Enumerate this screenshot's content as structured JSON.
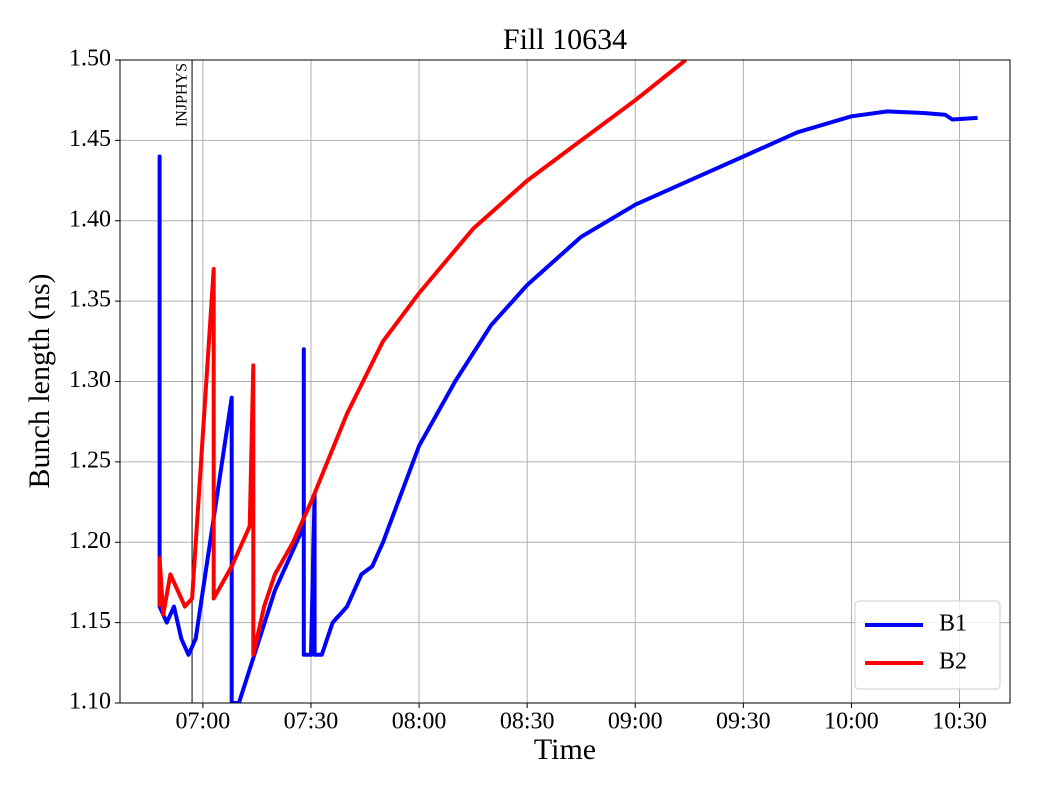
{
  "chart_data": {
    "type": "line",
    "title": "Fill 10634",
    "x_label": "Time",
    "y_label": "Bunch length (ns)",
    "xlim": [
      "06:37",
      "10:44"
    ],
    "xticks": [
      "07:00",
      "07:30",
      "08:00",
      "08:30",
      "09:00",
      "09:30",
      "10:00",
      "10:30"
    ],
    "ylim": [
      1.1,
      1.5
    ],
    "yticks": [
      {
        "value": 1.1,
        "label": "1.10"
      },
      {
        "value": 1.15,
        "label": "1.15"
      },
      {
        "value": 1.2,
        "label": "1.20"
      },
      {
        "value": 1.25,
        "label": "1.25"
      },
      {
        "value": 1.3,
        "label": "1.30"
      },
      {
        "value": 1.35,
        "label": "1.35"
      },
      {
        "value": 1.4,
        "label": "1.40"
      },
      {
        "value": 1.45,
        "label": "1.45"
      },
      {
        "value": 1.5,
        "label": "1.50"
      }
    ],
    "grid": true,
    "legend": "lower right",
    "annotations": [
      {
        "x": "06:57",
        "text": "INJPHYS"
      }
    ],
    "series": [
      {
        "name": "B1",
        "color": "#0000ff",
        "x": [
          "06:48",
          "06:48",
          "06:48",
          "06:50",
          "06:52",
          "06:54",
          "06:56",
          "06:58",
          "07:08",
          "07:08",
          "07:10",
          "07:20",
          "07:28",
          "07:28",
          "07:28",
          "07:30",
          "07:31",
          "07:31",
          "07:33",
          "07:36",
          "07:40",
          "07:44",
          "07:47",
          "07:50",
          "08:00",
          "08:10",
          "08:20",
          "08:30",
          "08:45",
          "09:00",
          "09:15",
          "09:30",
          "09:45",
          "10:00",
          "10:10",
          "10:20",
          "10:26",
          "10:28",
          "10:35"
        ],
        "values": [
          1.16,
          1.44,
          1.16,
          1.15,
          1.16,
          1.14,
          1.13,
          1.14,
          1.29,
          1.1,
          1.1,
          1.17,
          1.21,
          1.32,
          1.13,
          1.13,
          1.23,
          1.13,
          1.13,
          1.15,
          1.16,
          1.18,
          1.185,
          1.2,
          1.26,
          1.3,
          1.335,
          1.36,
          1.39,
          1.41,
          1.425,
          1.44,
          1.455,
          1.465,
          1.468,
          1.467,
          1.466,
          1.463,
          1.464
        ]
      },
      {
        "name": "B2",
        "color": "#ff0000",
        "x": [
          "06:48",
          "06:48",
          "06:49",
          "06:51",
          "06:53",
          "06:55",
          "06:57",
          "07:03",
          "07:03",
          "07:08",
          "07:13",
          "07:14",
          "07:14",
          "07:17",
          "07:20",
          "07:25",
          "07:30",
          "07:40",
          "07:50",
          "08:00",
          "08:15",
          "08:30",
          "08:45",
          "09:00",
          "09:14"
        ],
        "values": [
          1.16,
          1.19,
          1.155,
          1.18,
          1.17,
          1.16,
          1.165,
          1.37,
          1.165,
          1.185,
          1.21,
          1.31,
          1.13,
          1.16,
          1.18,
          1.2,
          1.225,
          1.28,
          1.325,
          1.355,
          1.395,
          1.425,
          1.45,
          1.475,
          1.5
        ]
      }
    ]
  }
}
